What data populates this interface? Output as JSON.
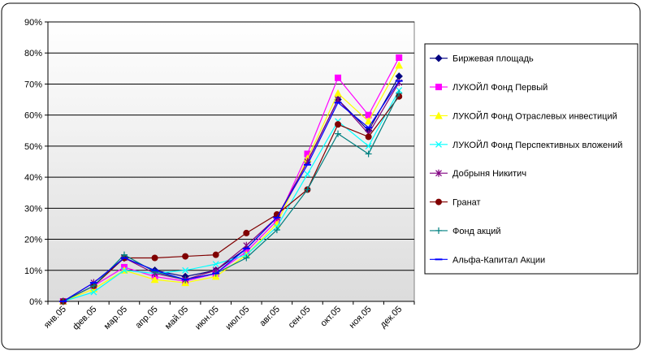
{
  "chart_data": {
    "type": "line",
    "title": "",
    "xlabel": "",
    "ylabel": "",
    "categories": [
      "янв.05",
      "фев.05",
      "мар.05",
      "апр.05",
      "май.05",
      "июн.05",
      "июл.05",
      "авг.05",
      "сен.05",
      "окт.05",
      "ноя.05",
      "дек.05"
    ],
    "ylim": [
      0,
      90
    ],
    "ytick_labels": [
      "0%",
      "10%",
      "20%",
      "30%",
      "40%",
      "50%",
      "60%",
      "70%",
      "80%",
      "90%"
    ],
    "grid": "horizontal",
    "legend_position": "right",
    "series": [
      {
        "name": "Биржевая площадь",
        "color": "#000080",
        "marker": "diamond",
        "values": [
          0,
          5,
          14,
          10,
          8,
          10,
          17,
          27,
          45,
          65,
          55,
          72.5
        ]
      },
      {
        "name": "ЛУКОЙЛ Фонд Первый",
        "color": "#ff00ff",
        "marker": "square",
        "values": [
          0,
          5,
          11,
          8,
          6.5,
          9,
          16,
          26,
          47.5,
          72,
          60,
          78.5
        ]
      },
      {
        "name": "ЛУКОЙЛ Фонд Отраслевых инвестиций",
        "color": "#ffff00",
        "marker": "triangle",
        "values": [
          0,
          4,
          10,
          7,
          6,
          8,
          15,
          25,
          46,
          67,
          58,
          76
        ]
      },
      {
        "name": "ЛУКОЙЛ Фонд Перспективных вложений",
        "color": "#00ffff",
        "marker": "x",
        "values": [
          0,
          3,
          10,
          9,
          10,
          12,
          15,
          24,
          41,
          58,
          50,
          68
        ]
      },
      {
        "name": "Добрыня Никитич",
        "color": "#800080",
        "marker": "star",
        "values": [
          0,
          6,
          14,
          9,
          7,
          10,
          18,
          27,
          45,
          65,
          54,
          70.5
        ]
      },
      {
        "name": "Гранат",
        "color": "#800000",
        "marker": "circle",
        "values": [
          0,
          5,
          14,
          14,
          14.5,
          15,
          22,
          28,
          36,
          57,
          53,
          66
        ]
      },
      {
        "name": "Фонд акций",
        "color": "#008080",
        "marker": "plus",
        "values": [
          0,
          5,
          15,
          9.5,
          7,
          9,
          14,
          23,
          36,
          54,
          47.5,
          67
        ]
      },
      {
        "name": "Альфа-Капитал Акции",
        "color": "#0000ff",
        "marker": "dash",
        "values": [
          0,
          6,
          14,
          10,
          7,
          9,
          17,
          27,
          44,
          64,
          56,
          71
        ]
      }
    ]
  }
}
